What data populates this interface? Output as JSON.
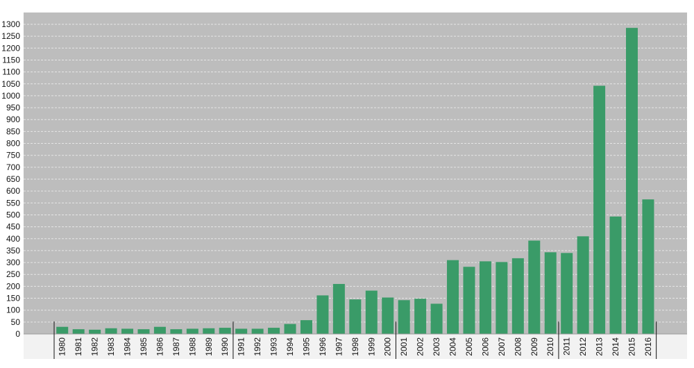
{
  "chart_data": {
    "type": "bar",
    "title": "",
    "xlabel": "",
    "ylabel": "",
    "categories": [
      "1980",
      "1981",
      "1982",
      "1983",
      "1984",
      "1985",
      "1986",
      "1987",
      "1988",
      "1989",
      "1990",
      "1991",
      "1992",
      "1993",
      "1994",
      "1995",
      "1996",
      "1997",
      "1998",
      "1999",
      "2000",
      "2001",
      "2002",
      "2003",
      "2004",
      "2005",
      "2006",
      "2007",
      "2008",
      "2009",
      "2010",
      "2011",
      "2012",
      "2013",
      "2014",
      "2015",
      "2016"
    ],
    "values": [
      30,
      20,
      18,
      24,
      22,
      20,
      30,
      20,
      22,
      24,
      26,
      22,
      22,
      26,
      42,
      58,
      162,
      210,
      145,
      182,
      153,
      142,
      148,
      127,
      310,
      282,
      305,
      302,
      318,
      392,
      343,
      340,
      410,
      1042,
      493,
      1285,
      565
    ],
    "ylim": [
      0,
      1300
    ],
    "yticks": [
      0,
      50,
      100,
      150,
      200,
      250,
      300,
      350,
      400,
      450,
      500,
      550,
      600,
      650,
      700,
      750,
      800,
      850,
      900,
      950,
      1000,
      1050,
      1100,
      1150,
      1200,
      1250,
      1300
    ],
    "grid": true,
    "colors": {
      "bar": "#3a9b68",
      "plot_background": "#bdbdbd",
      "axis_band": "#f2f2f2",
      "grid": "#e6e6e6"
    }
  }
}
